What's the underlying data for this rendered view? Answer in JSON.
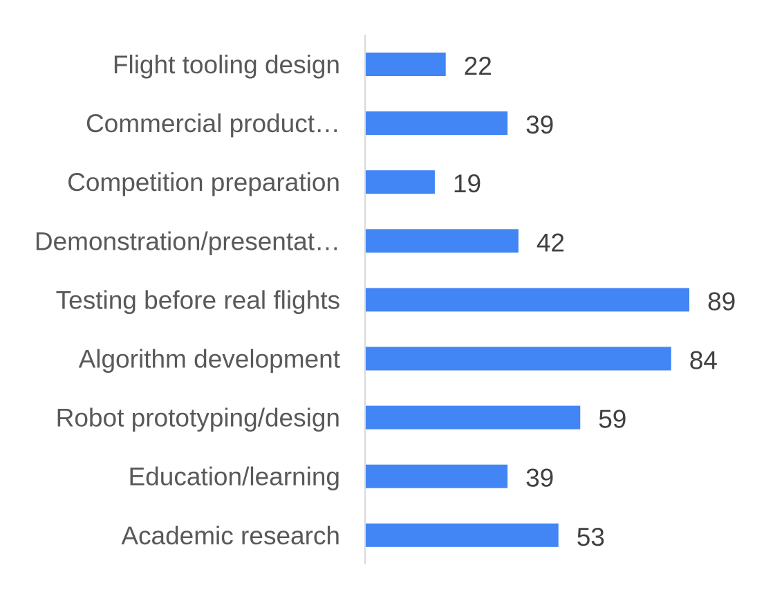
{
  "chart_data": {
    "type": "bar",
    "orientation": "horizontal",
    "categories": [
      "Flight tooling design",
      "Commercial product…",
      "Competition preparation",
      "Demonstration/presentat…",
      "Testing before real flights",
      "Algorithm development",
      "Robot prototyping/design",
      "Education/learning",
      "Academic research"
    ],
    "values": [
      22,
      39,
      19,
      42,
      89,
      84,
      59,
      39,
      53
    ],
    "data_labels": [
      "22",
      "39",
      "19",
      "42",
      "89",
      "84",
      "59",
      "39",
      "53"
    ],
    "title": "",
    "xlabel": "",
    "ylabel": "",
    "xlim": [
      0,
      89
    ],
    "grid": false,
    "legend": "none",
    "bar_color": "#4285F4",
    "axis_color": "#d9d9d9",
    "label_color": "#595959",
    "value_color": "#404040"
  }
}
